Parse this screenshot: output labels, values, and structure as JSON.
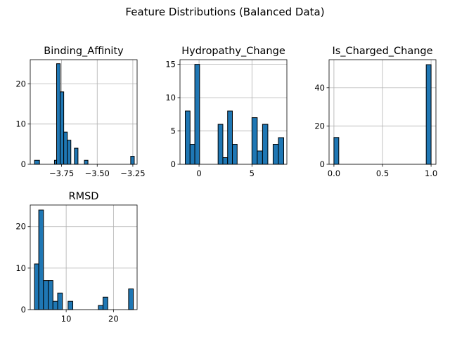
{
  "figure": {
    "title": "Feature Distributions (Balanced Data)",
    "bar_color": "#1f77b4",
    "edge_color": "#000000",
    "grid_color": "#b0b0b0"
  },
  "chart_data": [
    {
      "type": "bar",
      "title": "Binding_Affinity",
      "xlim": [
        -3.97,
        -3.22
      ],
      "ylim": [
        0,
        26
      ],
      "xticks": [
        -3.75,
        -3.5,
        -3.25
      ],
      "xtick_labels": [
        "−3.75",
        "−3.50",
        "−3.25"
      ],
      "yticks": [
        0,
        10,
        20
      ],
      "ytick_labels": [
        "0",
        "10",
        "20"
      ],
      "grid": true,
      "bins": [
        {
          "x0": -3.94,
          "x1": -3.905,
          "value": 1
        },
        {
          "x0": -3.8,
          "x1": -3.785,
          "value": 1
        },
        {
          "x0": -3.785,
          "x1": -3.76,
          "value": 25
        },
        {
          "x0": -3.76,
          "x1": -3.735,
          "value": 18
        },
        {
          "x0": -3.735,
          "x1": -3.71,
          "value": 8
        },
        {
          "x0": -3.71,
          "x1": -3.685,
          "value": 6
        },
        {
          "x0": -3.685,
          "x1": -3.66,
          "value": 0
        },
        {
          "x0": -3.66,
          "x1": -3.635,
          "value": 4
        },
        {
          "x0": -3.635,
          "x1": -3.59,
          "value": 0
        },
        {
          "x0": -3.59,
          "x1": -3.565,
          "value": 1
        },
        {
          "x0": -3.265,
          "x1": -3.24,
          "value": 2
        }
      ]
    },
    {
      "type": "bar",
      "title": "Hydropathy_Change",
      "xlim": [
        -1.8,
        8.3
      ],
      "ylim": [
        0,
        15.7
      ],
      "xticks": [
        0,
        5
      ],
      "xtick_labels": [
        "0",
        "5"
      ],
      "yticks": [
        0,
        5,
        10,
        15
      ],
      "ytick_labels": [
        "0",
        "5",
        "10",
        "15"
      ],
      "grid": true,
      "bins": [
        {
          "x0": -1.3,
          "x1": -0.85,
          "value": 8
        },
        {
          "x0": -0.85,
          "x1": -0.4,
          "value": 3
        },
        {
          "x0": -0.4,
          "x1": 0.05,
          "value": 15
        },
        {
          "x0": 1.8,
          "x1": 2.25,
          "value": 6
        },
        {
          "x0": 2.25,
          "x1": 2.7,
          "value": 1
        },
        {
          "x0": 2.7,
          "x1": 3.15,
          "value": 8
        },
        {
          "x0": 3.15,
          "x1": 3.6,
          "value": 3
        },
        {
          "x0": 5.0,
          "x1": 5.5,
          "value": 7
        },
        {
          "x0": 5.5,
          "x1": 6.0,
          "value": 2
        },
        {
          "x0": 6.0,
          "x1": 6.5,
          "value": 6
        },
        {
          "x0": 7.0,
          "x1": 7.5,
          "value": 3
        },
        {
          "x0": 7.5,
          "x1": 8.0,
          "value": 4
        }
      ]
    },
    {
      "type": "bar",
      "title": "Is_Charged_Change",
      "xlim": [
        -0.05,
        1.05
      ],
      "ylim": [
        0,
        54.6
      ],
      "xticks": [
        0.0,
        0.5,
        1.0
      ],
      "xtick_labels": [
        "0.0",
        "0.5",
        "1.0"
      ],
      "yticks": [
        0,
        20,
        40
      ],
      "ytick_labels": [
        "0",
        "20",
        "40"
      ],
      "grid": true,
      "bins": [
        {
          "x0": 0.0,
          "x1": 0.05,
          "value": 14
        },
        {
          "x0": 0.95,
          "x1": 1.0,
          "value": 52
        }
      ]
    },
    {
      "type": "bar",
      "title": "RMSD",
      "xlim": [
        2.4,
        25.0
      ],
      "ylim": [
        0,
        25.2
      ],
      "xticks": [
        10,
        20
      ],
      "xtick_labels": [
        "10",
        "20"
      ],
      "yticks": [
        0,
        10,
        20
      ],
      "ytick_labels": [
        "0",
        "10",
        "20"
      ],
      "grid": true,
      "bins": [
        {
          "x0": 3.3,
          "x1": 4.2,
          "value": 11
        },
        {
          "x0": 4.2,
          "x1": 5.2,
          "value": 24
        },
        {
          "x0": 5.2,
          "x1": 6.2,
          "value": 7
        },
        {
          "x0": 6.2,
          "x1": 7.2,
          "value": 7
        },
        {
          "x0": 7.2,
          "x1": 8.2,
          "value": 2
        },
        {
          "x0": 8.2,
          "x1": 9.2,
          "value": 4
        },
        {
          "x0": 10.4,
          "x1": 11.4,
          "value": 2
        },
        {
          "x0": 16.8,
          "x1": 17.8,
          "value": 1
        },
        {
          "x0": 17.8,
          "x1": 18.8,
          "value": 3
        },
        {
          "x0": 23.2,
          "x1": 24.2,
          "value": 5
        }
      ]
    }
  ]
}
